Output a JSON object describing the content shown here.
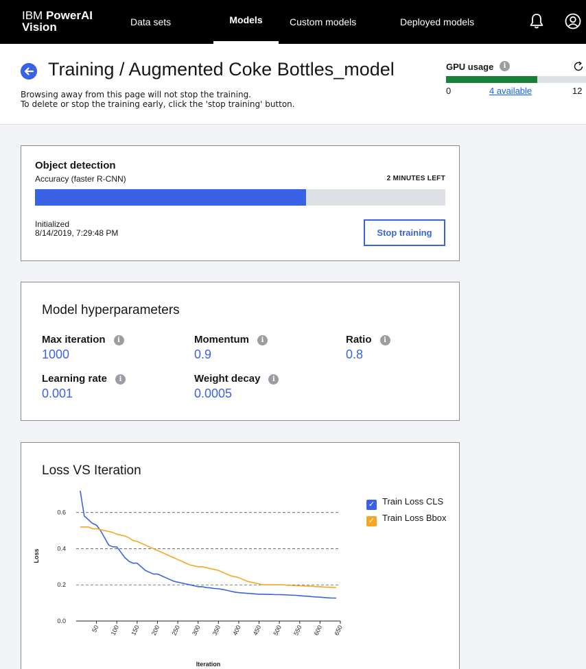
{
  "nav": {
    "brand_light": "IBM ",
    "brand_bold": "PowerAI",
    "brand_line2": "Vision",
    "items": [
      {
        "label": "Data sets",
        "active": false
      },
      {
        "label": "Models",
        "active": true
      },
      {
        "label": "Custom models",
        "active": false
      },
      {
        "label": "Deployed models",
        "active": false
      }
    ]
  },
  "header": {
    "title": "Training / Augmented Coke Bottles_model",
    "notice_line1": "Browsing away from this page will not stop the training.",
    "notice_line2": "To delete or stop the training early, click the 'stop training' button.",
    "gpu": {
      "title": "GPU usage",
      "min": "0",
      "available_link": "4 available",
      "max": "12",
      "used_fraction": 0.65
    }
  },
  "training": {
    "title": "Object detection",
    "subtitle": "Accuracy (faster R-CNN)",
    "time_left": "2 MINUTES LEFT",
    "progress": 0.66,
    "initialized_label": "Initialized",
    "initialized_date": "8/14/2019, 7:29:48 PM",
    "stop_label": "Stop training"
  },
  "hyperparameters": {
    "title": "Model hyperparameters",
    "items": [
      {
        "name": "Max iteration",
        "value": "1000"
      },
      {
        "name": "Momentum",
        "value": "0.9"
      },
      {
        "name": "Ratio",
        "value": "0.8"
      },
      {
        "name": "Learning rate",
        "value": "0.001"
      },
      {
        "name": "Weight decay",
        "value": "0.0005"
      }
    ]
  },
  "chart_section": {
    "title": "Loss VS Iteration"
  },
  "chart_data": {
    "type": "line",
    "title": "Loss VS Iteration",
    "xlabel": "Iteration",
    "ylabel": "Loss",
    "xlim": [
      0,
      650
    ],
    "ylim": [
      0,
      0.72
    ],
    "xticks": [
      "50",
      "100",
      "150",
      "200",
      "250",
      "300",
      "350",
      "400",
      "450",
      "500",
      "550",
      "600",
      "650"
    ],
    "yticks": [
      "0.0",
      "0.2",
      "0.4",
      "0.6"
    ],
    "grid": "horizontal dashed",
    "legend": "top-right",
    "x": [
      10,
      20,
      30,
      40,
      50,
      60,
      70,
      80,
      90,
      100,
      110,
      120,
      130,
      140,
      150,
      160,
      170,
      180,
      190,
      200,
      210,
      220,
      230,
      240,
      250,
      260,
      270,
      280,
      290,
      300,
      310,
      320,
      330,
      340,
      350,
      360,
      370,
      380,
      390,
      400,
      410,
      420,
      430,
      440,
      450,
      460,
      470,
      480,
      490,
      500,
      510,
      520,
      530,
      540,
      550,
      560,
      570,
      580,
      590,
      600,
      610,
      620,
      630,
      640
    ],
    "series": [
      {
        "name": "Train Loss CLS",
        "color": "#3a62e6",
        "values": [
          0.72,
          0.58,
          0.56,
          0.54,
          0.53,
          0.5,
          0.46,
          0.42,
          0.41,
          0.41,
          0.38,
          0.35,
          0.33,
          0.32,
          0.32,
          0.3,
          0.28,
          0.27,
          0.26,
          0.26,
          0.25,
          0.24,
          0.23,
          0.22,
          0.215,
          0.21,
          0.205,
          0.2,
          0.195,
          0.19,
          0.19,
          0.185,
          0.183,
          0.18,
          0.178,
          0.175,
          0.17,
          0.165,
          0.16,
          0.157,
          0.155,
          0.153,
          0.152,
          0.15,
          0.148,
          0.148,
          0.147,
          0.147,
          0.146,
          0.146,
          0.145,
          0.144,
          0.143,
          0.142,
          0.14,
          0.138,
          0.137,
          0.135,
          0.133,
          0.132,
          0.13,
          0.128,
          0.127,
          0.127
        ]
      },
      {
        "name": "Train Loss Bbox",
        "color": "#f5a623",
        "values": [
          0.52,
          0.52,
          0.52,
          0.51,
          0.51,
          0.505,
          0.5,
          0.495,
          0.49,
          0.48,
          0.475,
          0.47,
          0.46,
          0.445,
          0.44,
          0.43,
          0.42,
          0.41,
          0.4,
          0.39,
          0.38,
          0.37,
          0.36,
          0.35,
          0.34,
          0.33,
          0.32,
          0.31,
          0.305,
          0.3,
          0.3,
          0.295,
          0.29,
          0.285,
          0.28,
          0.27,
          0.26,
          0.25,
          0.245,
          0.24,
          0.23,
          0.22,
          0.215,
          0.21,
          0.205,
          0.2,
          0.2,
          0.2,
          0.2,
          0.2,
          0.2,
          0.198,
          0.197,
          0.196,
          0.195,
          0.194,
          0.193,
          0.193,
          0.19,
          0.19,
          0.188,
          0.187,
          0.186,
          0.185
        ]
      }
    ]
  }
}
